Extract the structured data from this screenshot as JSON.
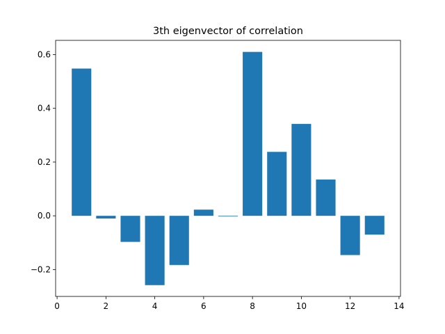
{
  "chart_data": {
    "type": "bar",
    "title": "3th eigenvector of correlation",
    "xlabel": "",
    "ylabel": "",
    "x": [
      1,
      2,
      3,
      4,
      5,
      6,
      7,
      8,
      9,
      10,
      11,
      12,
      13
    ],
    "values": [
      0.548,
      -0.01,
      -0.097,
      -0.258,
      -0.183,
      0.023,
      -0.002,
      0.61,
      0.238,
      0.342,
      0.135,
      -0.146,
      -0.07
    ],
    "bar_width": 0.8,
    "xlim": [
      -0.06,
      14.06
    ],
    "ylim": [
      -0.3,
      0.653
    ],
    "x_ticks": [
      0,
      2,
      4,
      6,
      8,
      10,
      12,
      14
    ],
    "y_ticks": [
      -0.2,
      0.0,
      0.2,
      0.4,
      0.6
    ],
    "y_tick_labels": [
      "−0.2",
      "0.0",
      "0.2",
      "0.4",
      "0.6"
    ],
    "bar_color": "#1f77b4",
    "grid": false,
    "legend": "none"
  }
}
